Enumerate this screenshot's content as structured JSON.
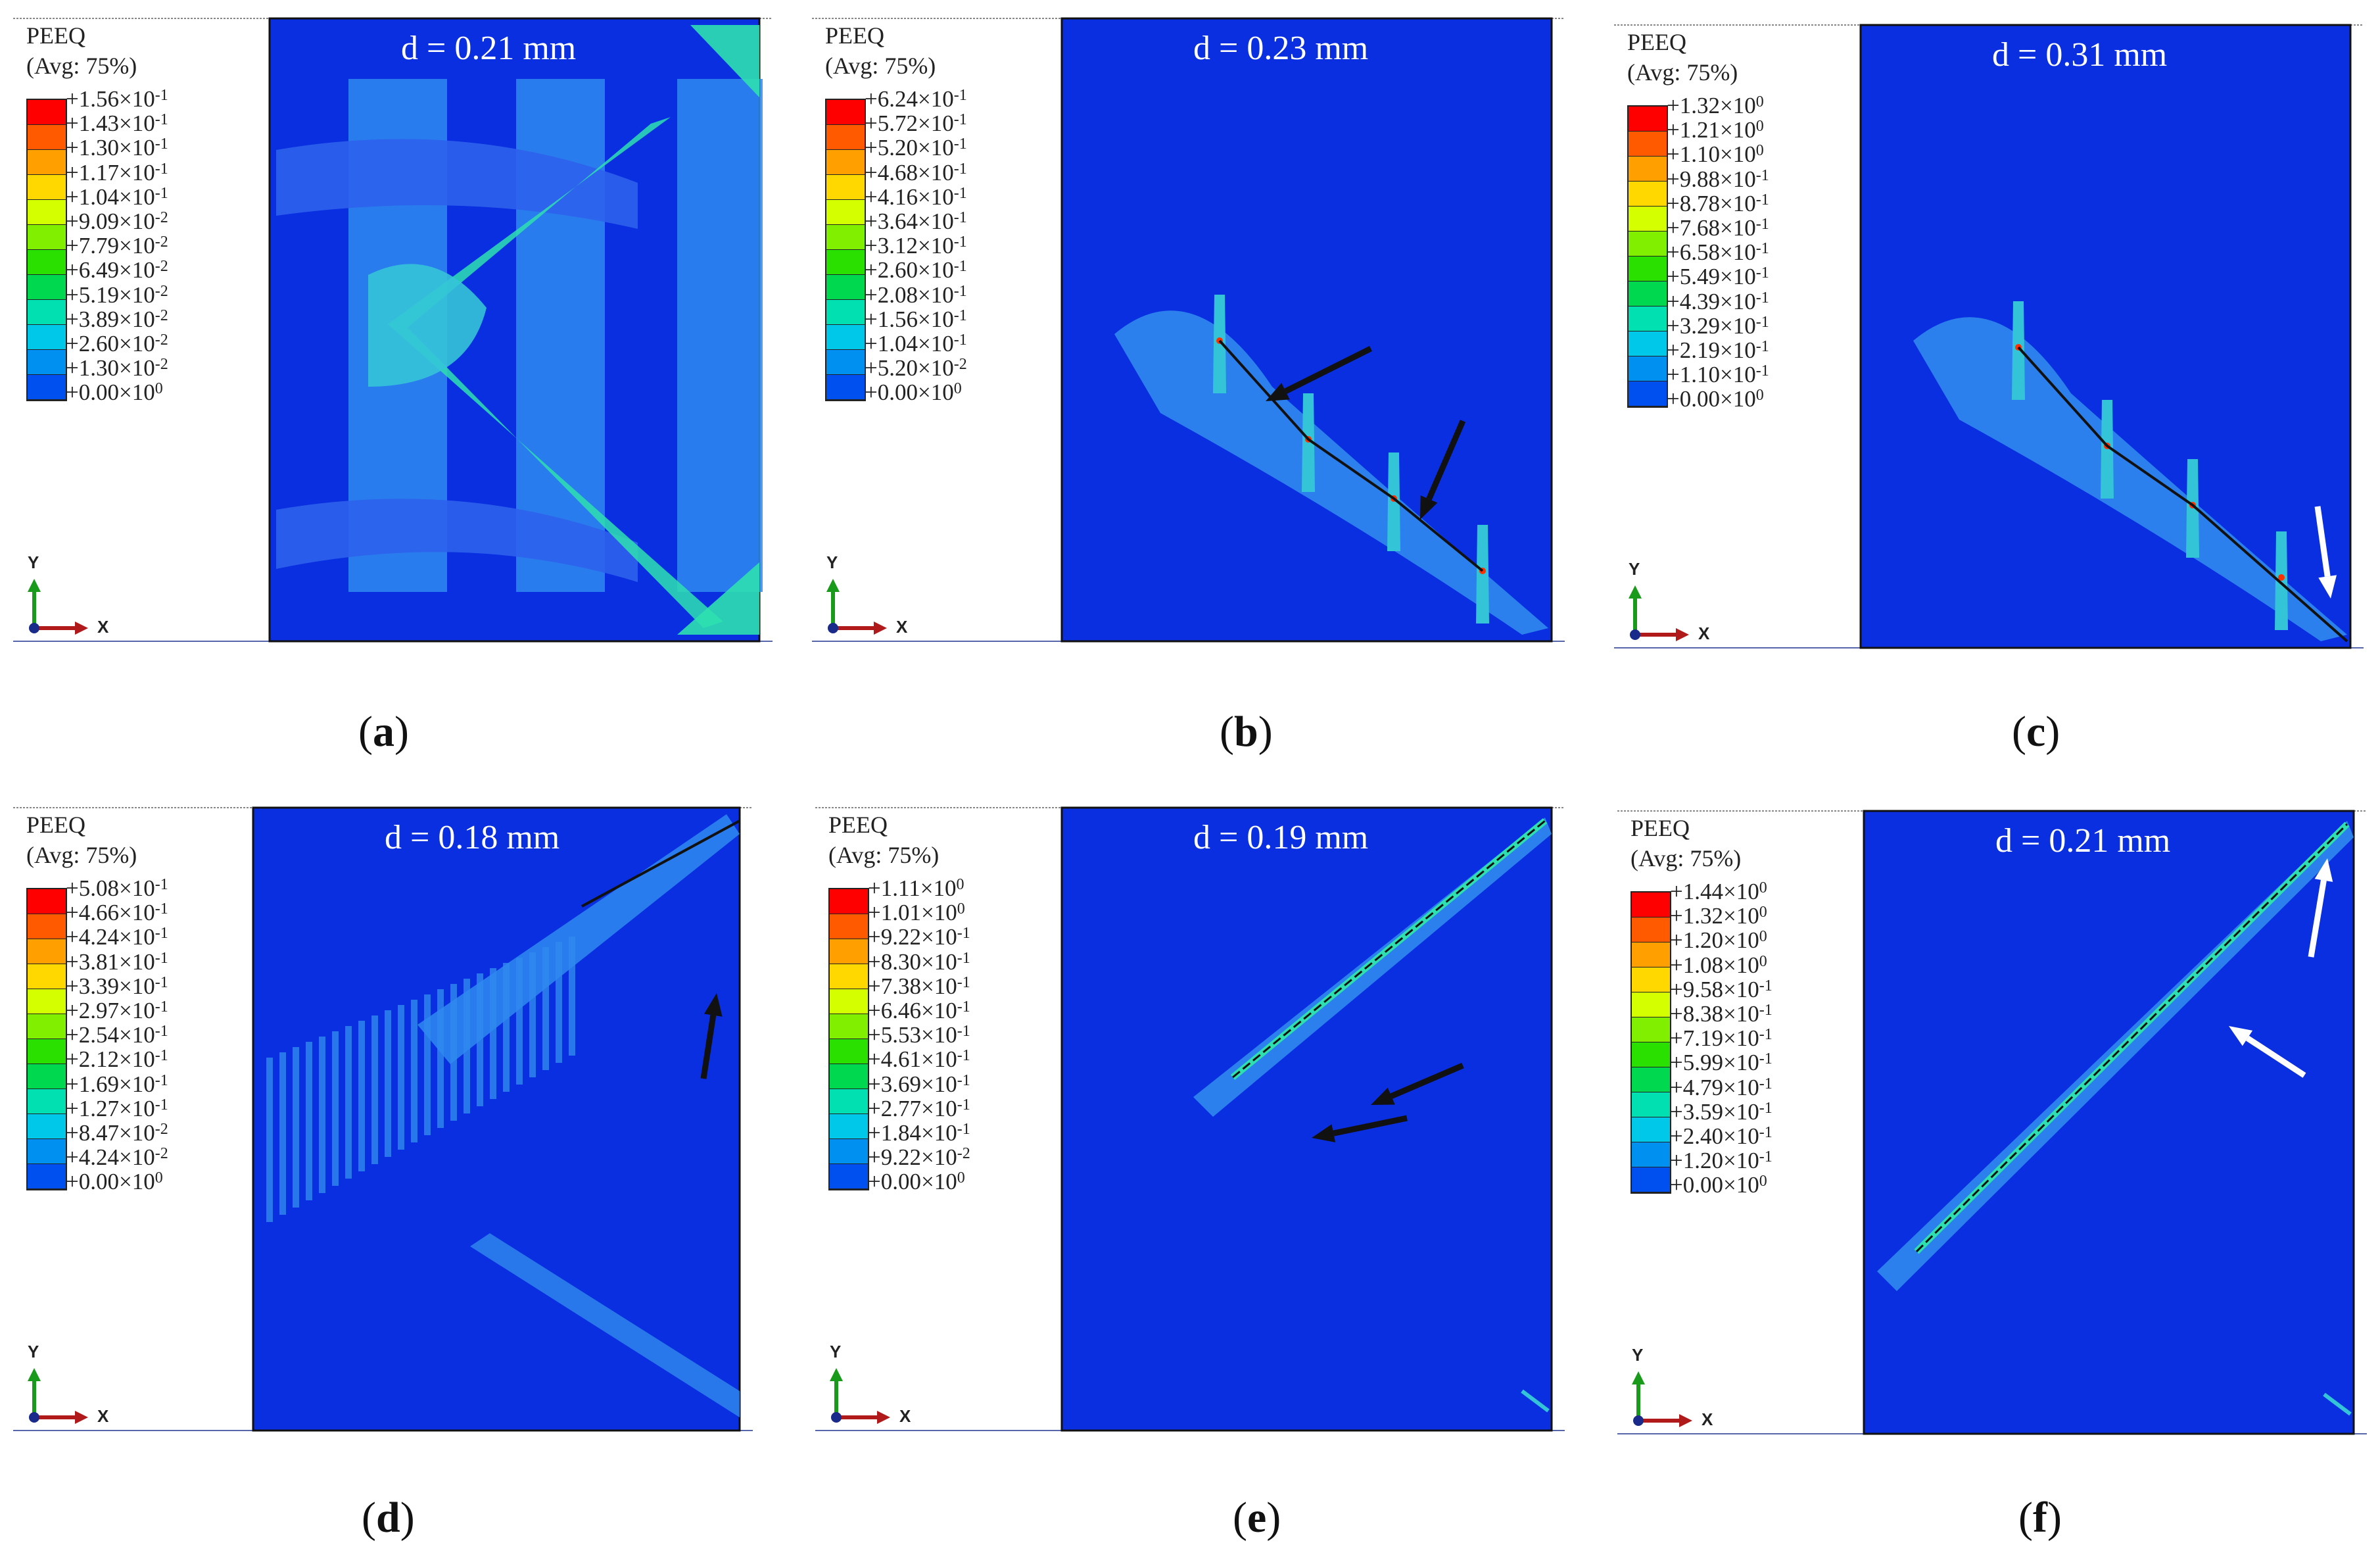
{
  "legend_title_line1": "PEEQ",
  "legend_title_line2": "(Avg: 75%)",
  "axis_labels": {
    "y": "Y",
    "x": "X"
  },
  "colormap": [
    "#ff0000",
    "#ff5a00",
    "#ffa000",
    "#ffd800",
    "#d4ff00",
    "#80f000",
    "#2ae000",
    "#00d850",
    "#00e0b0",
    "#00c8e8",
    "#0090f0",
    "#0050f0",
    "#0018e0"
  ],
  "panels": [
    {
      "id": "a",
      "caption_letter": "a",
      "displacement": "d = 0.21 mm",
      "legend": [
        {
          "mantissa": "+1.56",
          "exponent": "-1"
        },
        {
          "mantissa": "+1.43",
          "exponent": "-1"
        },
        {
          "mantissa": "+1.30",
          "exponent": "-1"
        },
        {
          "mantissa": "+1.17",
          "exponent": "-1"
        },
        {
          "mantissa": "+1.04",
          "exponent": "-1"
        },
        {
          "mantissa": "+9.09",
          "exponent": "-2"
        },
        {
          "mantissa": "+7.79",
          "exponent": "-2"
        },
        {
          "mantissa": "+6.49",
          "exponent": "-2"
        },
        {
          "mantissa": "+5.19",
          "exponent": "-2"
        },
        {
          "mantissa": "+3.89",
          "exponent": "-2"
        },
        {
          "mantissa": "+2.60",
          "exponent": "-2"
        },
        {
          "mantissa": "+1.30",
          "exponent": "-2"
        },
        {
          "mantissa": "+0.00",
          "exponent": "0"
        }
      ]
    },
    {
      "id": "b",
      "caption_letter": "b",
      "displacement": "d = 0.23 mm",
      "legend": [
        {
          "mantissa": "+6.24",
          "exponent": "-1"
        },
        {
          "mantissa": "+5.72",
          "exponent": "-1"
        },
        {
          "mantissa": "+5.20",
          "exponent": "-1"
        },
        {
          "mantissa": "+4.68",
          "exponent": "-1"
        },
        {
          "mantissa": "+4.16",
          "exponent": "-1"
        },
        {
          "mantissa": "+3.64",
          "exponent": "-1"
        },
        {
          "mantissa": "+3.12",
          "exponent": "-1"
        },
        {
          "mantissa": "+2.60",
          "exponent": "-1"
        },
        {
          "mantissa": "+2.08",
          "exponent": "-1"
        },
        {
          "mantissa": "+1.56",
          "exponent": "-1"
        },
        {
          "mantissa": "+1.04",
          "exponent": "-1"
        },
        {
          "mantissa": "+5.20",
          "exponent": "-2"
        },
        {
          "mantissa": "+0.00",
          "exponent": "0"
        }
      ]
    },
    {
      "id": "c",
      "caption_letter": "c",
      "displacement": "d = 0.31 mm",
      "legend": [
        {
          "mantissa": "+1.32",
          "exponent": "0"
        },
        {
          "mantissa": "+1.21",
          "exponent": "0"
        },
        {
          "mantissa": "+1.10",
          "exponent": "0"
        },
        {
          "mantissa": "+9.88",
          "exponent": "-1"
        },
        {
          "mantissa": "+8.78",
          "exponent": "-1"
        },
        {
          "mantissa": "+7.68",
          "exponent": "-1"
        },
        {
          "mantissa": "+6.58",
          "exponent": "-1"
        },
        {
          "mantissa": "+5.49",
          "exponent": "-1"
        },
        {
          "mantissa": "+4.39",
          "exponent": "-1"
        },
        {
          "mantissa": "+3.29",
          "exponent": "-1"
        },
        {
          "mantissa": "+2.19",
          "exponent": "-1"
        },
        {
          "mantissa": "+1.10",
          "exponent": "-1"
        },
        {
          "mantissa": "+0.00",
          "exponent": "0"
        }
      ]
    },
    {
      "id": "d",
      "caption_letter": "d",
      "displacement": "d = 0.18 mm",
      "legend": [
        {
          "mantissa": "+5.08",
          "exponent": "-1"
        },
        {
          "mantissa": "+4.66",
          "exponent": "-1"
        },
        {
          "mantissa": "+4.24",
          "exponent": "-1"
        },
        {
          "mantissa": "+3.81",
          "exponent": "-1"
        },
        {
          "mantissa": "+3.39",
          "exponent": "-1"
        },
        {
          "mantissa": "+2.97",
          "exponent": "-1"
        },
        {
          "mantissa": "+2.54",
          "exponent": "-1"
        },
        {
          "mantissa": "+2.12",
          "exponent": "-1"
        },
        {
          "mantissa": "+1.69",
          "exponent": "-1"
        },
        {
          "mantissa": "+1.27",
          "exponent": "-1"
        },
        {
          "mantissa": "+8.47",
          "exponent": "-2"
        },
        {
          "mantissa": "+4.24",
          "exponent": "-2"
        },
        {
          "mantissa": "+0.00",
          "exponent": "0"
        }
      ]
    },
    {
      "id": "e",
      "caption_letter": "e",
      "displacement": "d = 0.19 mm",
      "legend": [
        {
          "mantissa": "+1.11",
          "exponent": "0"
        },
        {
          "mantissa": "+1.01",
          "exponent": "0"
        },
        {
          "mantissa": "+9.22",
          "exponent": "-1"
        },
        {
          "mantissa": "+8.30",
          "exponent": "-1"
        },
        {
          "mantissa": "+7.38",
          "exponent": "-1"
        },
        {
          "mantissa": "+6.46",
          "exponent": "-1"
        },
        {
          "mantissa": "+5.53",
          "exponent": "-1"
        },
        {
          "mantissa": "+4.61",
          "exponent": "-1"
        },
        {
          "mantissa": "+3.69",
          "exponent": "-1"
        },
        {
          "mantissa": "+2.77",
          "exponent": "-1"
        },
        {
          "mantissa": "+1.84",
          "exponent": "-1"
        },
        {
          "mantissa": "+9.22",
          "exponent": "-2"
        },
        {
          "mantissa": "+0.00",
          "exponent": "0"
        }
      ]
    },
    {
      "id": "f",
      "caption_letter": "f",
      "displacement": "d = 0.21 mm",
      "legend": [
        {
          "mantissa": "+1.44",
          "exponent": "0"
        },
        {
          "mantissa": "+1.32",
          "exponent": "0"
        },
        {
          "mantissa": "+1.20",
          "exponent": "0"
        },
        {
          "mantissa": "+1.08",
          "exponent": "0"
        },
        {
          "mantissa": "+9.58",
          "exponent": "-1"
        },
        {
          "mantissa": "+8.38",
          "exponent": "-1"
        },
        {
          "mantissa": "+7.19",
          "exponent": "-1"
        },
        {
          "mantissa": "+5.99",
          "exponent": "-1"
        },
        {
          "mantissa": "+4.79",
          "exponent": "-1"
        },
        {
          "mantissa": "+3.59",
          "exponent": "-1"
        },
        {
          "mantissa": "+2.40",
          "exponent": "-1"
        },
        {
          "mantissa": "+1.20",
          "exponent": "-1"
        },
        {
          "mantissa": "+0.00",
          "exponent": "0"
        }
      ]
    }
  ]
}
